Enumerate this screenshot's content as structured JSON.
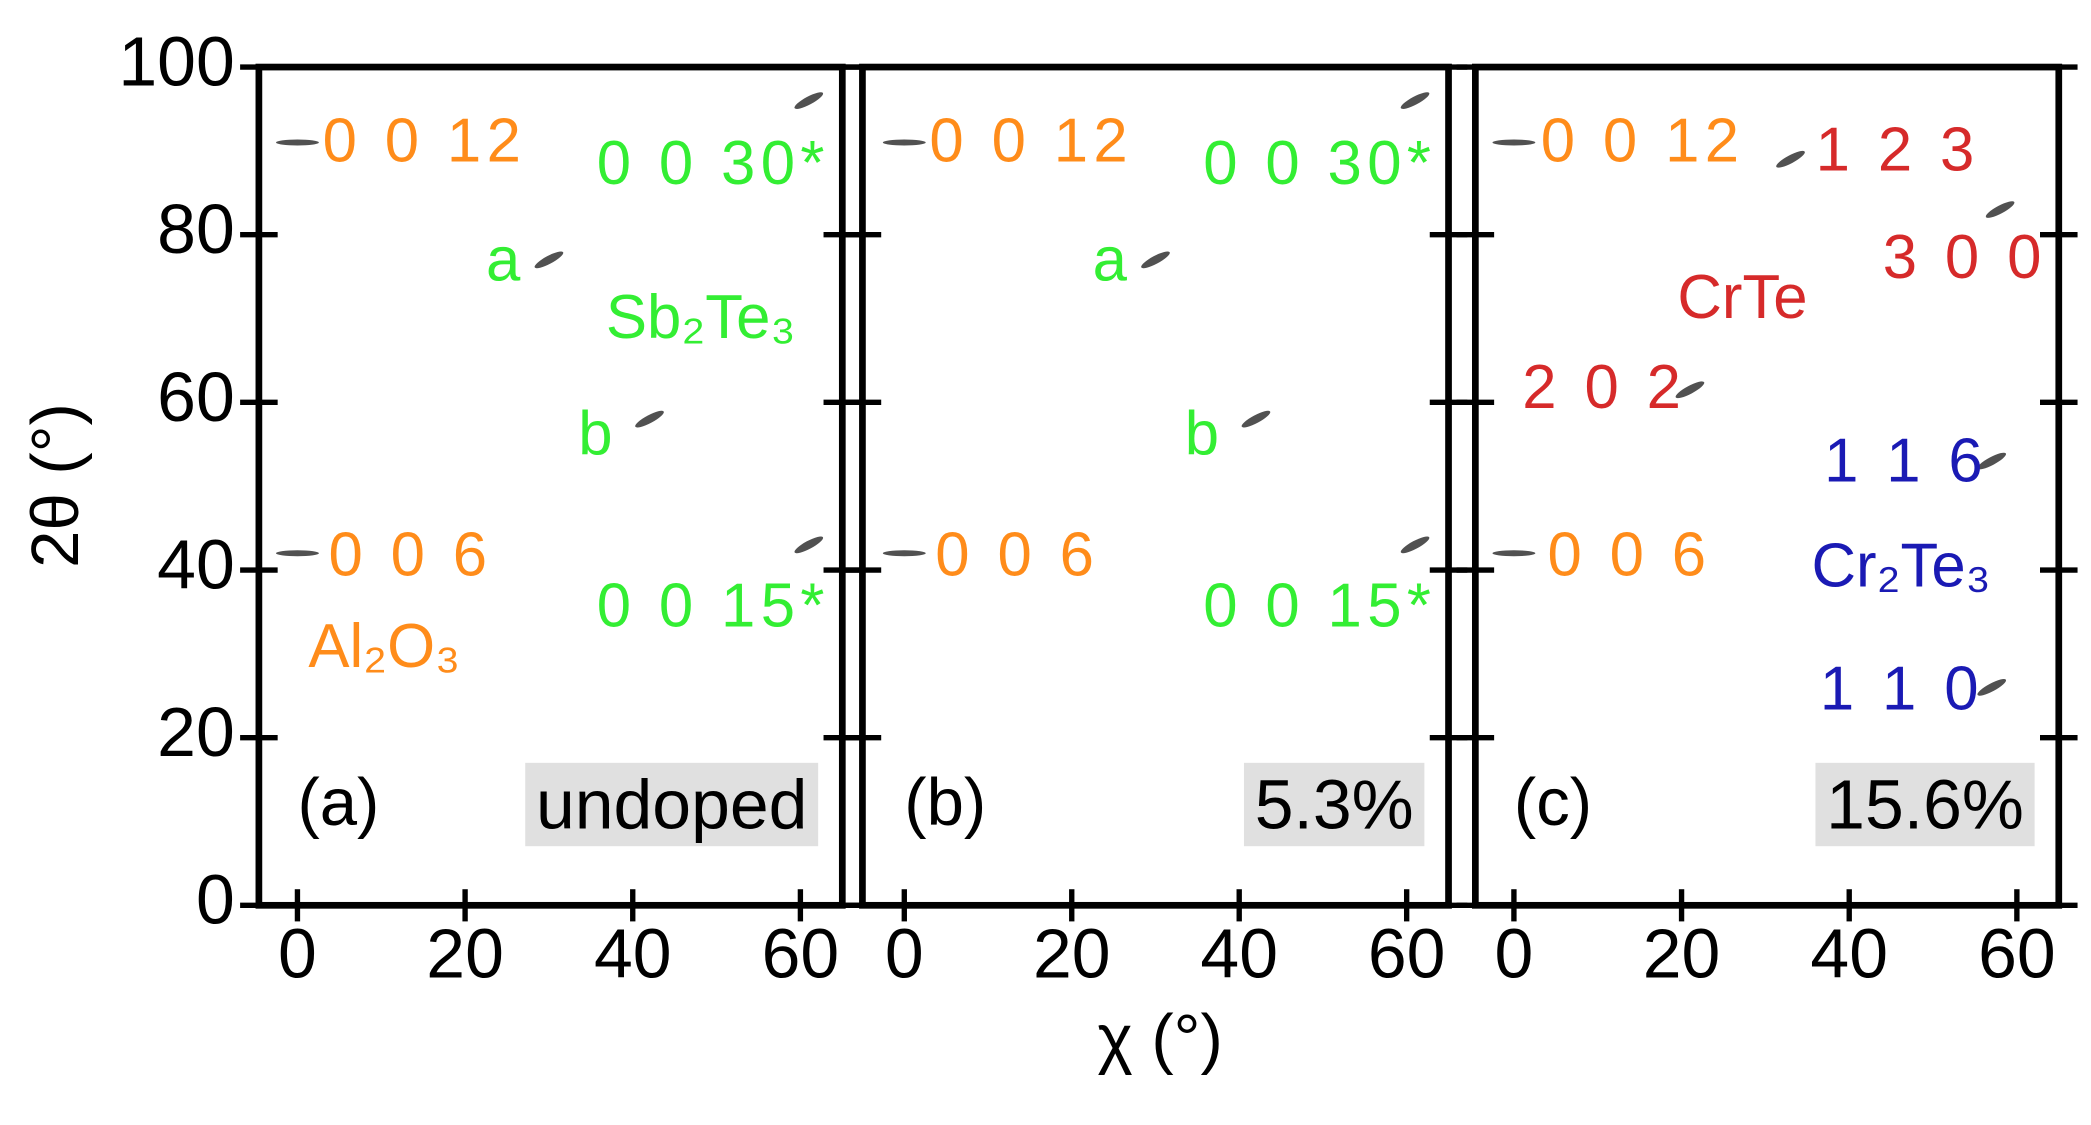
{
  "xlabel": "χ (°)",
  "ylabel": "2θ (°)",
  "chart_data": [
    {
      "type": "scatter",
      "panel_label": "(a)",
      "sample_label": "undoped",
      "sample_box": true,
      "x": [
        0,
        0,
        30,
        42,
        61,
        61
      ],
      "y": [
        91,
        42,
        77,
        58,
        96,
        43
      ],
      "spot_color": "#333333",
      "xlim": [
        -4.6,
        65
      ],
      "ylim": [
        0,
        100
      ],
      "xticks": [
        0,
        20,
        40,
        60
      ],
      "yticks": [
        0,
        20,
        40,
        60,
        80,
        100
      ],
      "show_yticklabels": true,
      "annotations": [
        {
          "text": "0 0 12",
          "color": "#ff8c1a"
        },
        {
          "text": "0 0 30*",
          "color": "#33ee33"
        },
        {
          "text": "a",
          "color": "#33ee33"
        },
        {
          "text": "Sb₂Te₃",
          "color": "#33ee33"
        },
        {
          "text": "b",
          "color": "#33ee33"
        },
        {
          "text": "0 0 6",
          "color": "#ff8c1a"
        },
        {
          "text": "0 0 15*",
          "color": "#33ee33"
        },
        {
          "text": "Al₂O₃",
          "color": "#ff8c1a"
        }
      ]
    },
    {
      "type": "scatter",
      "panel_label": "(b)",
      "sample_label": "5.3%",
      "sample_box": true,
      "x": [
        0,
        0,
        30,
        42,
        61,
        61
      ],
      "y": [
        91,
        42,
        77,
        58,
        96,
        43
      ],
      "spot_color": "#333333",
      "xlim": [
        -5,
        65
      ],
      "ylim": [
        0,
        100
      ],
      "xticks": [
        0,
        20,
        40,
        60
      ],
      "yticks": [
        0,
        20,
        40,
        60,
        80,
        100
      ],
      "show_yticklabels": false,
      "annotations": [
        {
          "text": "0 0 12",
          "color": "#ff8c1a"
        },
        {
          "text": "0 0 30*",
          "color": "#33ee33"
        },
        {
          "text": "a",
          "color": "#33ee33"
        },
        {
          "text": "b",
          "color": "#33ee33"
        },
        {
          "text": "0 0 6",
          "color": "#ff8c1a"
        },
        {
          "text": "0 0 15*",
          "color": "#33ee33"
        }
      ]
    },
    {
      "type": "scatter",
      "panel_label": "(c)",
      "sample_label": "15.6%",
      "sample_box": true,
      "x": [
        0,
        0,
        21,
        33,
        58,
        57,
        57
      ],
      "y": [
        91,
        42,
        61.5,
        89,
        83,
        53,
        26
      ],
      "spot_color": "#333333",
      "xlim": [
        -4.6,
        65
      ],
      "ylim": [
        0,
        100
      ],
      "xticks": [
        0,
        20,
        40,
        60
      ],
      "yticks": [
        0,
        20,
        40,
        60,
        80,
        100
      ],
      "show_yticklabels": false,
      "annotations": [
        {
          "text": "0 0 12",
          "color": "#ff8c1a"
        },
        {
          "text": "1 2 3",
          "color": "#d62a2a"
        },
        {
          "text": "3 0 0",
          "color": "#d62a2a"
        },
        {
          "text": "CrTe",
          "color": "#d62a2a"
        },
        {
          "text": "2 0 2",
          "color": "#d62a2a"
        },
        {
          "text": "1 1 6",
          "color": "#1a1ab4"
        },
        {
          "text": "0 0 6",
          "color": "#ff8c1a"
        },
        {
          "text": "Cr₂Te₃",
          "color": "#1a1ab4"
        },
        {
          "text": "1 1 0",
          "color": "#1a1ab4"
        }
      ]
    }
  ]
}
